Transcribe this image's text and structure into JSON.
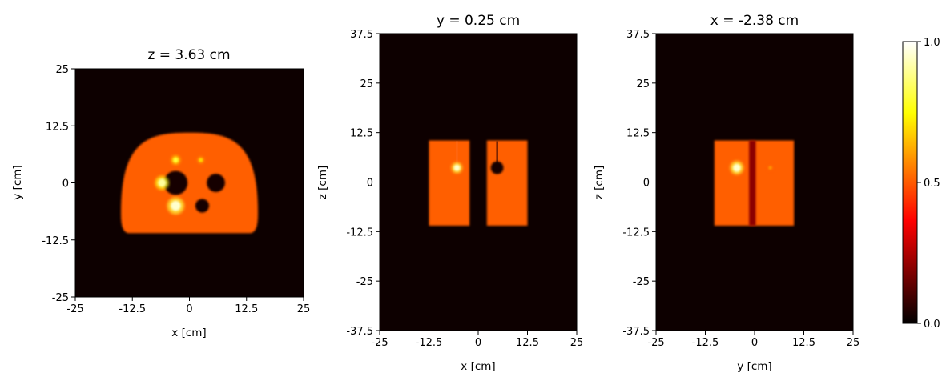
{
  "colors": {
    "background": "#0d0000",
    "phantom_body": "#d41a08",
    "hot_sphere": "#fff27a",
    "warm_sphere": "#ffcc00",
    "cold_sphere": "#140000"
  },
  "chart_data": [
    {
      "type": "heatmap",
      "title": "z = 3.63 cm",
      "xlabel": "x [cm]",
      "ylabel": "y [cm]",
      "xlim": [
        -25,
        25
      ],
      "ylim": [
        -25,
        25
      ],
      "xticks": [
        "-25",
        "-12.5",
        "0",
        "12.5",
        "25"
      ],
      "yticks": [
        "-25",
        "-12.5",
        "0",
        "12.5",
        "25"
      ],
      "colormap": "hot",
      "grid": false,
      "body": {
        "shape": "half-ellipse (flat bottom)",
        "x_range": [
          -15,
          15
        ],
        "y_bottom": -11,
        "y_top": 11,
        "value": 0.55
      },
      "spheres": [
        {
          "x": -3,
          "y": 0,
          "r": 2.6,
          "value": 0.0
        },
        {
          "x": 5.8,
          "y": 0,
          "r": 2.0,
          "value": 0.0
        },
        {
          "x": 2.8,
          "y": -5,
          "r": 1.5,
          "value": 0.0
        },
        {
          "x": -6,
          "y": 0,
          "r": 0.9,
          "value": 0.9
        },
        {
          "x": -3,
          "y": -5,
          "r": 1.1,
          "value": 0.95
        },
        {
          "x": -3,
          "y": 5,
          "r": 0.6,
          "value": 0.8
        },
        {
          "x": 2.5,
          "y": 5,
          "r": 0.45,
          "value": 0.7
        }
      ]
    },
    {
      "type": "heatmap",
      "title": "y = 0.25 cm",
      "xlabel": "x [cm]",
      "ylabel": "z [cm]",
      "xlim": [
        -25,
        25
      ],
      "ylim": [
        -37.5,
        37.5
      ],
      "xticks": [
        "-25",
        "-12.5",
        "0",
        "12.5",
        "25"
      ],
      "yticks": [
        "-37.5",
        "-25",
        "-12.5",
        "0",
        "12.5",
        "25",
        "37.5"
      ],
      "colormap": "hot",
      "grid": false,
      "blocks": [
        {
          "x_range": [
            -12.5,
            -2.2
          ],
          "z_range": [
            -11,
            10.5
          ],
          "value": 0.55
        },
        {
          "x_range": [
            2.2,
            12.5
          ],
          "z_range": [
            -11,
            10.5
          ],
          "value": 0.55
        }
      ],
      "spheres": [
        {
          "x": -5.4,
          "z": 3.6,
          "r": 0.8,
          "value": 0.95
        },
        {
          "x": 4.8,
          "z": 3.6,
          "r": 1.6,
          "value": 0.0
        }
      ]
    },
    {
      "type": "heatmap",
      "title": "x = -2.38 cm",
      "xlabel": "y [cm]",
      "ylabel": "z [cm]",
      "xlim": [
        -25,
        25
      ],
      "ylim": [
        -37.5,
        37.5
      ],
      "xticks": [
        "-25",
        "-12.5",
        "0",
        "12.5",
        "25"
      ],
      "yticks": [
        "-37.5",
        "-25",
        "-12.5",
        "0",
        "12.5",
        "25",
        "37.5"
      ],
      "colormap": "hot",
      "grid": false,
      "blocks": [
        {
          "x_range": [
            -10.2,
            10
          ],
          "z_range": [
            -11,
            10.5
          ],
          "value": 0.55
        }
      ],
      "stripe": {
        "x_range": [
          -1.4,
          0.3
        ],
        "value": 0.2
      },
      "spheres": [
        {
          "x": -4.5,
          "z": 3.6,
          "r": 1.0,
          "value": 0.95
        },
        {
          "x": 4.0,
          "z": 3.6,
          "r": 0.45,
          "value": 0.6
        }
      ]
    },
    {
      "type": "colorbar",
      "colormap": "hot",
      "range": [
        0.0,
        1.0
      ],
      "ticks": [
        "0.0",
        "0.5",
        "1.0"
      ]
    }
  ]
}
